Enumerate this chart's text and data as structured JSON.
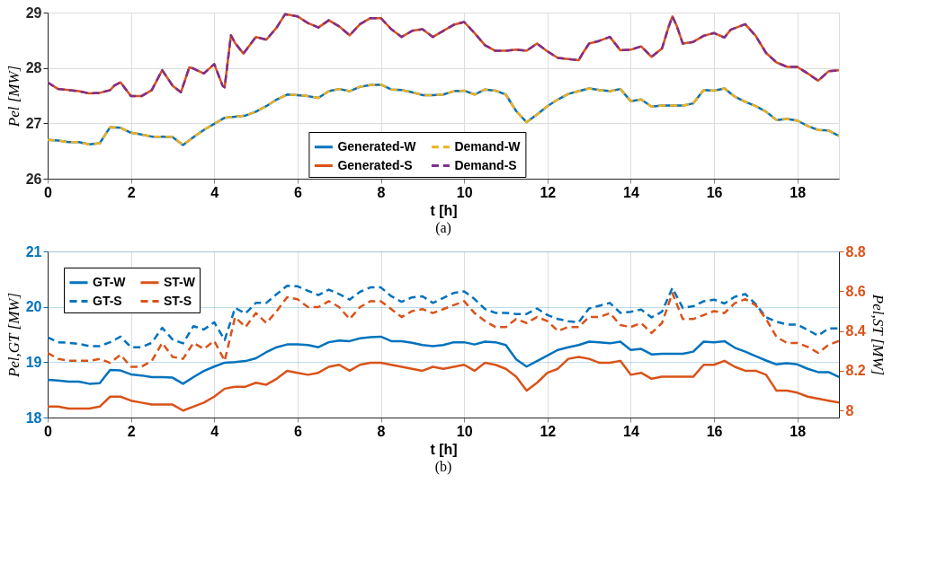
{
  "chart_data": [
    {
      "type": "line",
      "xlabel": "t [h]",
      "ylabel": "Pel [MW]",
      "xlim": [
        0,
        19
      ],
      "xticks": [
        0,
        2,
        4,
        6,
        8,
        10,
        12,
        14,
        16,
        18
      ],
      "ylim": [
        26,
        29
      ],
      "yticks": [
        26,
        27,
        28,
        29
      ],
      "grid": true,
      "legend": "bottom",
      "line_style": "solid",
      "annotations": [
        "(a)"
      ],
      "x": [
        0,
        0.25,
        0.5,
        0.75,
        1,
        1.25,
        1.5,
        1.75,
        2,
        2.25,
        2.5,
        2.75,
        3,
        3.25,
        3.5,
        3.75,
        4,
        4.25,
        4.5,
        4.75,
        5,
        5.25,
        5.5,
        5.75,
        6,
        6.25,
        6.5,
        6.75,
        7,
        7.25,
        7.5,
        7.75,
        8,
        8.25,
        8.5,
        8.75,
        9,
        9.25,
        9.5,
        9.75,
        10,
        10.25,
        10.5,
        10.75,
        11,
        11.25,
        11.5,
        11.75,
        12,
        12.25,
        12.5,
        12.75,
        13,
        13.25,
        13.5,
        13.75,
        14,
        14.25,
        14.5,
        14.75,
        15,
        15.25,
        15.5,
        15.75,
        16,
        16.25,
        16.5,
        16.75,
        17,
        17.25,
        17.5,
        17.75,
        18,
        18.25,
        18.5,
        18.75,
        19
      ],
      "series": [
        {
          "name": "Generated-W",
          "color": "#0072bd",
          "values": [
            26.7,
            26.69,
            26.66,
            26.66,
            26.62,
            26.64,
            26.93,
            26.92,
            26.83,
            26.8,
            26.76,
            26.76,
            26.75,
            26.61,
            26.75,
            26.88,
            26.99,
            27.1,
            27.12,
            27.14,
            27.21,
            27.31,
            27.43,
            27.52,
            27.51,
            27.49,
            27.46,
            27.58,
            27.62,
            27.58,
            27.66,
            27.69,
            27.7,
            27.61,
            27.6,
            27.56,
            27.51,
            27.51,
            27.52,
            27.58,
            27.59,
            27.52,
            27.61,
            27.59,
            27.52,
            27.22,
            27.02,
            27.16,
            27.31,
            27.43,
            27.53,
            27.58,
            27.63,
            27.6,
            27.58,
            27.62,
            27.4,
            27.43,
            27.3,
            27.32,
            27.32,
            27.32,
            27.36,
            27.6,
            27.59,
            27.63,
            27.48,
            27.39,
            27.31,
            27.21,
            27.06,
            27.08,
            27.05,
            26.95,
            26.88,
            26.87,
            26.77
          ]
        },
        {
          "name": "Demand-W",
          "color": "#edb120",
          "line_style": "dashed",
          "values": [
            26.7,
            26.69,
            26.66,
            26.66,
            26.62,
            26.64,
            26.93,
            26.92,
            26.83,
            26.8,
            26.76,
            26.76,
            26.75,
            26.61,
            26.75,
            26.88,
            26.99,
            27.1,
            27.12,
            27.14,
            27.21,
            27.31,
            27.43,
            27.52,
            27.51,
            27.49,
            27.46,
            27.58,
            27.62,
            27.58,
            27.66,
            27.69,
            27.7,
            27.61,
            27.6,
            27.56,
            27.51,
            27.51,
            27.52,
            27.58,
            27.59,
            27.52,
            27.61,
            27.59,
            27.52,
            27.22,
            27.02,
            27.16,
            27.31,
            27.43,
            27.53,
            27.58,
            27.63,
            27.6,
            27.58,
            27.62,
            27.4,
            27.43,
            27.3,
            27.32,
            27.32,
            27.32,
            27.36,
            27.6,
            27.59,
            27.63,
            27.48,
            27.39,
            27.31,
            27.21,
            27.06,
            27.08,
            27.05,
            26.95,
            26.88,
            26.87,
            26.77
          ]
        },
        {
          "name": "Generated-S",
          "color": "#d95319",
          "x": [
            0,
            0.25,
            0.5,
            0.75,
            1,
            1.25,
            1.5,
            1.6,
            1.75,
            2,
            2.25,
            2.5,
            2.75,
            3,
            3.2,
            3.4,
            3.5,
            3.75,
            4,
            4.2,
            4.25,
            4.4,
            4.5,
            4.7,
            5,
            5.25,
            5.5,
            5.7,
            6,
            6.25,
            6.5,
            6.75,
            7,
            7.25,
            7.5,
            7.75,
            8,
            8.25,
            8.5,
            8.75,
            9,
            9.25,
            9.5,
            9.75,
            10,
            10.25,
            10.5,
            10.75,
            11,
            11.25,
            11.5,
            11.75,
            12,
            12.25,
            12.5,
            12.75,
            12.85,
            13,
            13.25,
            13.5,
            13.75,
            14,
            14.25,
            14.5,
            14.75,
            14.9,
            15,
            15.1,
            15.25,
            15.5,
            15.75,
            16,
            16.25,
            16.4,
            16.75,
            17,
            17.25,
            17.5,
            17.75,
            18,
            18.25,
            18.5,
            18.75,
            19
          ],
          "values": [
            27.74,
            27.62,
            27.6,
            27.58,
            27.54,
            27.55,
            27.6,
            27.68,
            27.74,
            27.49,
            27.49,
            27.6,
            27.96,
            27.68,
            27.56,
            28.01,
            27.99,
            27.9,
            28.07,
            27.68,
            27.65,
            28.59,
            28.45,
            28.26,
            28.56,
            28.51,
            28.73,
            28.97,
            28.93,
            28.81,
            28.73,
            28.86,
            28.75,
            28.59,
            28.79,
            28.9,
            28.9,
            28.7,
            28.56,
            28.67,
            28.7,
            28.56,
            28.67,
            28.78,
            28.83,
            28.63,
            28.41,
            28.31,
            28.31,
            28.33,
            28.31,
            28.44,
            28.3,
            28.18,
            28.16,
            28.14,
            28.27,
            28.44,
            28.49,
            28.56,
            28.32,
            28.33,
            28.39,
            28.2,
            28.35,
            28.72,
            28.93,
            28.77,
            28.44,
            28.47,
            28.58,
            28.63,
            28.55,
            28.69,
            28.79,
            28.58,
            28.27,
            28.1,
            28.02,
            28.02,
            27.9,
            27.77,
            27.94,
            27.96
          ]
        },
        {
          "name": "Demand-S",
          "color": "#7e2f8e",
          "line_style": "dashed",
          "x": [
            0,
            0.25,
            0.5,
            0.75,
            1,
            1.25,
            1.5,
            1.6,
            1.75,
            2,
            2.25,
            2.5,
            2.75,
            3,
            3.2,
            3.4,
            3.5,
            3.75,
            4,
            4.2,
            4.25,
            4.4,
            4.5,
            4.7,
            5,
            5.25,
            5.5,
            5.7,
            6,
            6.25,
            6.5,
            6.75,
            7,
            7.25,
            7.5,
            7.75,
            8,
            8.25,
            8.5,
            8.75,
            9,
            9.25,
            9.5,
            9.75,
            10,
            10.25,
            10.5,
            10.75,
            11,
            11.25,
            11.5,
            11.75,
            12,
            12.25,
            12.5,
            12.75,
            12.85,
            13,
            13.25,
            13.5,
            13.75,
            14,
            14.25,
            14.5,
            14.75,
            14.9,
            15,
            15.1,
            15.25,
            15.5,
            15.75,
            16,
            16.25,
            16.4,
            16.75,
            17,
            17.25,
            17.5,
            17.75,
            18,
            18.25,
            18.5,
            18.75,
            19
          ],
          "values": [
            27.74,
            27.62,
            27.6,
            27.58,
            27.54,
            27.55,
            27.6,
            27.68,
            27.74,
            27.49,
            27.49,
            27.6,
            27.96,
            27.68,
            27.56,
            28.01,
            27.99,
            27.9,
            28.07,
            27.68,
            27.65,
            28.59,
            28.45,
            28.26,
            28.56,
            28.51,
            28.73,
            28.97,
            28.93,
            28.81,
            28.73,
            28.86,
            28.75,
            28.59,
            28.79,
            28.9,
            28.9,
            28.7,
            28.56,
            28.67,
            28.7,
            28.56,
            28.67,
            28.78,
            28.83,
            28.63,
            28.41,
            28.31,
            28.31,
            28.33,
            28.31,
            28.44,
            28.3,
            28.18,
            28.16,
            28.14,
            28.27,
            28.44,
            28.49,
            28.56,
            28.32,
            28.33,
            28.39,
            28.2,
            28.35,
            28.72,
            28.93,
            28.77,
            28.44,
            28.47,
            28.58,
            28.63,
            28.55,
            28.69,
            28.79,
            28.58,
            28.27,
            28.1,
            28.02,
            28.02,
            27.9,
            27.77,
            27.94,
            27.96
          ]
        }
      ]
    },
    {
      "type": "line",
      "xlabel": "t [h]",
      "ylabel": "Pel,GT [MW]",
      "y2label": "Pel,ST [MW]",
      "xlim": [
        0,
        19
      ],
      "xticks": [
        0,
        2,
        4,
        6,
        8,
        10,
        12,
        14,
        16,
        18
      ],
      "ylim": [
        18,
        21
      ],
      "yticks": [
        18,
        19,
        20,
        21
      ],
      "y2lim": [
        7.965,
        8.8
      ],
      "y2ticks": [
        8,
        8.2,
        8.4,
        8.6,
        8.8
      ],
      "grid": true,
      "legend": "top left",
      "line_style": "solid",
      "annotations": [
        "(b)"
      ],
      "x": [
        0,
        0.25,
        0.5,
        0.75,
        1,
        1.25,
        1.5,
        1.75,
        2,
        2.25,
        2.5,
        2.75,
        3,
        3.25,
        3.5,
        3.75,
        4,
        4.25,
        4.5,
        4.75,
        5,
        5.25,
        5.5,
        5.75,
        6,
        6.25,
        6.5,
        6.75,
        7,
        7.25,
        7.5,
        7.75,
        8,
        8.25,
        8.5,
        8.75,
        9,
        9.25,
        9.5,
        9.75,
        10,
        10.25,
        10.5,
        10.75,
        11,
        11.25,
        11.5,
        11.75,
        12,
        12.25,
        12.5,
        12.75,
        13,
        13.25,
        13.5,
        13.75,
        14,
        14.25,
        14.5,
        14.75,
        15,
        15.25,
        15.5,
        15.75,
        16,
        16.25,
        16.5,
        16.75,
        17,
        17.25,
        17.5,
        17.75,
        18,
        18.25,
        18.5,
        18.75,
        19
      ],
      "series": [
        {
          "name": "GT-W",
          "color": "#0072bd",
          "values": [
            18.68,
            18.67,
            18.65,
            18.65,
            18.61,
            18.62,
            18.86,
            18.85,
            18.78,
            18.76,
            18.73,
            18.73,
            18.72,
            18.61,
            18.73,
            18.84,
            18.92,
            18.99,
            19.0,
            19.02,
            19.07,
            19.18,
            19.27,
            19.32,
            19.32,
            19.31,
            19.27,
            19.36,
            19.39,
            19.38,
            19.43,
            19.45,
            19.46,
            19.38,
            19.38,
            19.35,
            19.31,
            19.29,
            19.31,
            19.36,
            19.36,
            19.32,
            19.37,
            19.36,
            19.31,
            19.05,
            18.92,
            19.02,
            19.12,
            19.22,
            19.27,
            19.31,
            19.37,
            19.36,
            19.34,
            19.37,
            19.22,
            19.24,
            19.14,
            19.15,
            19.15,
            19.15,
            19.19,
            19.37,
            19.36,
            19.38,
            19.26,
            19.19,
            19.11,
            19.03,
            18.96,
            18.98,
            18.96,
            18.88,
            18.82,
            18.82,
            18.73
          ]
        },
        {
          "name": "ST-W",
          "color": "#d95319",
          "axis": "y2",
          "values": [
            8.02,
            8.02,
            8.01,
            8.01,
            8.01,
            8.02,
            8.07,
            8.07,
            8.05,
            8.04,
            8.03,
            8.03,
            8.03,
            8.0,
            8.02,
            8.04,
            8.07,
            8.11,
            8.12,
            8.12,
            8.14,
            8.13,
            8.16,
            8.2,
            8.19,
            8.18,
            8.19,
            8.22,
            8.23,
            8.2,
            8.23,
            8.24,
            8.24,
            8.23,
            8.22,
            8.21,
            8.2,
            8.22,
            8.21,
            8.22,
            8.23,
            8.2,
            8.24,
            8.23,
            8.21,
            8.17,
            8.1,
            8.14,
            8.19,
            8.21,
            8.26,
            8.27,
            8.26,
            8.24,
            8.24,
            8.25,
            8.18,
            8.19,
            8.16,
            8.17,
            8.17,
            8.17,
            8.17,
            8.23,
            8.23,
            8.25,
            8.22,
            8.2,
            8.2,
            8.18,
            8.1,
            8.1,
            8.09,
            8.07,
            8.06,
            8.05,
            8.04
          ]
        },
        {
          "name": "GT-S",
          "color": "#0072bd",
          "line_style": "dashed",
          "values": [
            19.45,
            19.36,
            19.35,
            19.33,
            19.29,
            19.29,
            19.36,
            19.46,
            19.27,
            19.27,
            19.35,
            19.62,
            19.41,
            19.34,
            19.65,
            19.59,
            19.72,
            19.4,
            19.98,
            19.88,
            20.07,
            20.07,
            20.23,
            20.38,
            20.37,
            20.29,
            20.21,
            20.31,
            20.23,
            20.13,
            20.27,
            20.35,
            20.35,
            20.19,
            20.09,
            20.17,
            20.19,
            20.07,
            20.16,
            20.25,
            20.28,
            20.14,
            19.96,
            19.89,
            19.89,
            19.87,
            19.87,
            19.97,
            19.85,
            19.78,
            19.74,
            19.72,
            19.97,
            20.02,
            20.07,
            19.89,
            19.91,
            19.95,
            19.81,
            19.91,
            20.34,
            19.98,
            20.01,
            20.1,
            20.13,
            20.06,
            20.18,
            20.23,
            20.05,
            19.81,
            19.73,
            19.68,
            19.68,
            19.58,
            19.48,
            19.61,
            19.61
          ]
        },
        {
          "name": "ST-S",
          "color": "#d95319",
          "axis": "y2",
          "line_style": "dashed",
          "values": [
            8.29,
            8.26,
            8.25,
            8.25,
            8.25,
            8.26,
            8.24,
            8.28,
            8.22,
            8.22,
            8.25,
            8.34,
            8.27,
            8.26,
            8.34,
            8.31,
            8.35,
            8.25,
            8.47,
            8.42,
            8.49,
            8.44,
            8.5,
            8.57,
            8.56,
            8.52,
            8.52,
            8.55,
            8.52,
            8.46,
            8.52,
            8.55,
            8.55,
            8.51,
            8.47,
            8.5,
            8.51,
            8.49,
            8.51,
            8.53,
            8.55,
            8.49,
            8.45,
            8.42,
            8.42,
            8.46,
            8.44,
            8.47,
            8.45,
            8.4,
            8.42,
            8.42,
            8.47,
            8.47,
            8.49,
            8.43,
            8.42,
            8.44,
            8.39,
            8.44,
            8.59,
            8.46,
            8.46,
            8.48,
            8.5,
            8.49,
            8.54,
            8.56,
            8.53,
            8.46,
            8.37,
            8.34,
            8.34,
            8.32,
            8.29,
            8.33,
            8.35
          ]
        }
      ]
    }
  ]
}
